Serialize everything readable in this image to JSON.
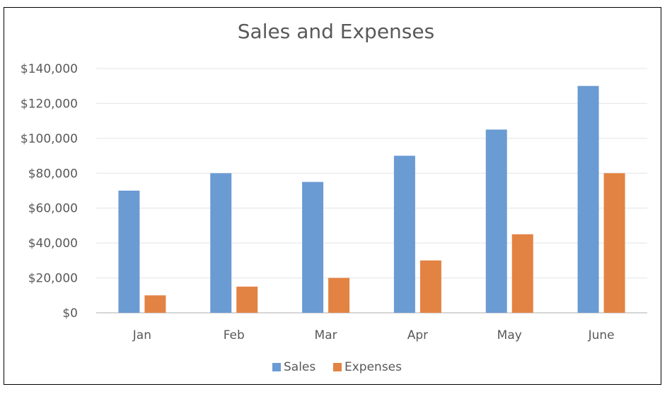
{
  "chart_data": {
    "type": "bar",
    "title": "Sales and Expenses",
    "categories": [
      "Jan",
      "Feb",
      "Mar",
      "Apr",
      "May",
      "June"
    ],
    "series": [
      {
        "name": "Sales",
        "color": "#6A9BD3",
        "values": [
          70000,
          80000,
          75000,
          90000,
          105000,
          130000
        ]
      },
      {
        "name": "Expenses",
        "color": "#E38343",
        "values": [
          10000,
          15000,
          20000,
          30000,
          45000,
          80000
        ]
      }
    ],
    "y_ticks": [
      0,
      20000,
      40000,
      60000,
      80000,
      100000,
      120000,
      140000
    ],
    "y_tick_labels": [
      "$0",
      "$20,000",
      "$40,000",
      "$60,000",
      "$80,000",
      "$100,000",
      "$120,000",
      "$140,000"
    ],
    "ylim": [
      0,
      140000
    ],
    "grid": true,
    "legend": "bottom-center"
  }
}
